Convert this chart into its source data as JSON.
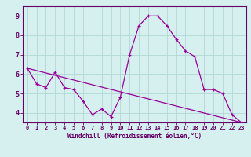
{
  "xlabel": "Windchill (Refroidissement éolien,°C)",
  "ylabel": "",
  "bg_color": "#d6f0ef",
  "grid_color": "#b0d8d8",
  "line_color": "#990099",
  "xlim": [
    -0.5,
    23.5
  ],
  "ylim": [
    3.5,
    9.5
  ],
  "yticks": [
    4,
    5,
    6,
    7,
    8,
    9
  ],
  "xticks": [
    0,
    1,
    2,
    3,
    4,
    5,
    6,
    7,
    8,
    9,
    10,
    11,
    12,
    13,
    14,
    15,
    16,
    17,
    18,
    19,
    20,
    21,
    22,
    23
  ],
  "series1_x": [
    0,
    1,
    2,
    3,
    4,
    5,
    6,
    7,
    8,
    9,
    10,
    11,
    12,
    13,
    14,
    15,
    16,
    17,
    18,
    19,
    20,
    21,
    22,
    23
  ],
  "series1_y": [
    6.3,
    5.5,
    5.3,
    6.1,
    5.3,
    5.2,
    4.6,
    3.9,
    4.2,
    3.8,
    4.8,
    7.0,
    8.5,
    9.0,
    9.0,
    8.5,
    7.8,
    7.2,
    6.9,
    5.2,
    5.2,
    5.0,
    3.9,
    3.5
  ],
  "series2_x": [
    0,
    23
  ],
  "series2_y": [
    6.3,
    3.5
  ],
  "axis_color": "#660066",
  "tick_color": "#660066",
  "label_color": "#660066",
  "xlabel_fontsize": 5.5,
  "tick_fontsize_x": 5.0,
  "tick_fontsize_y": 6.0
}
